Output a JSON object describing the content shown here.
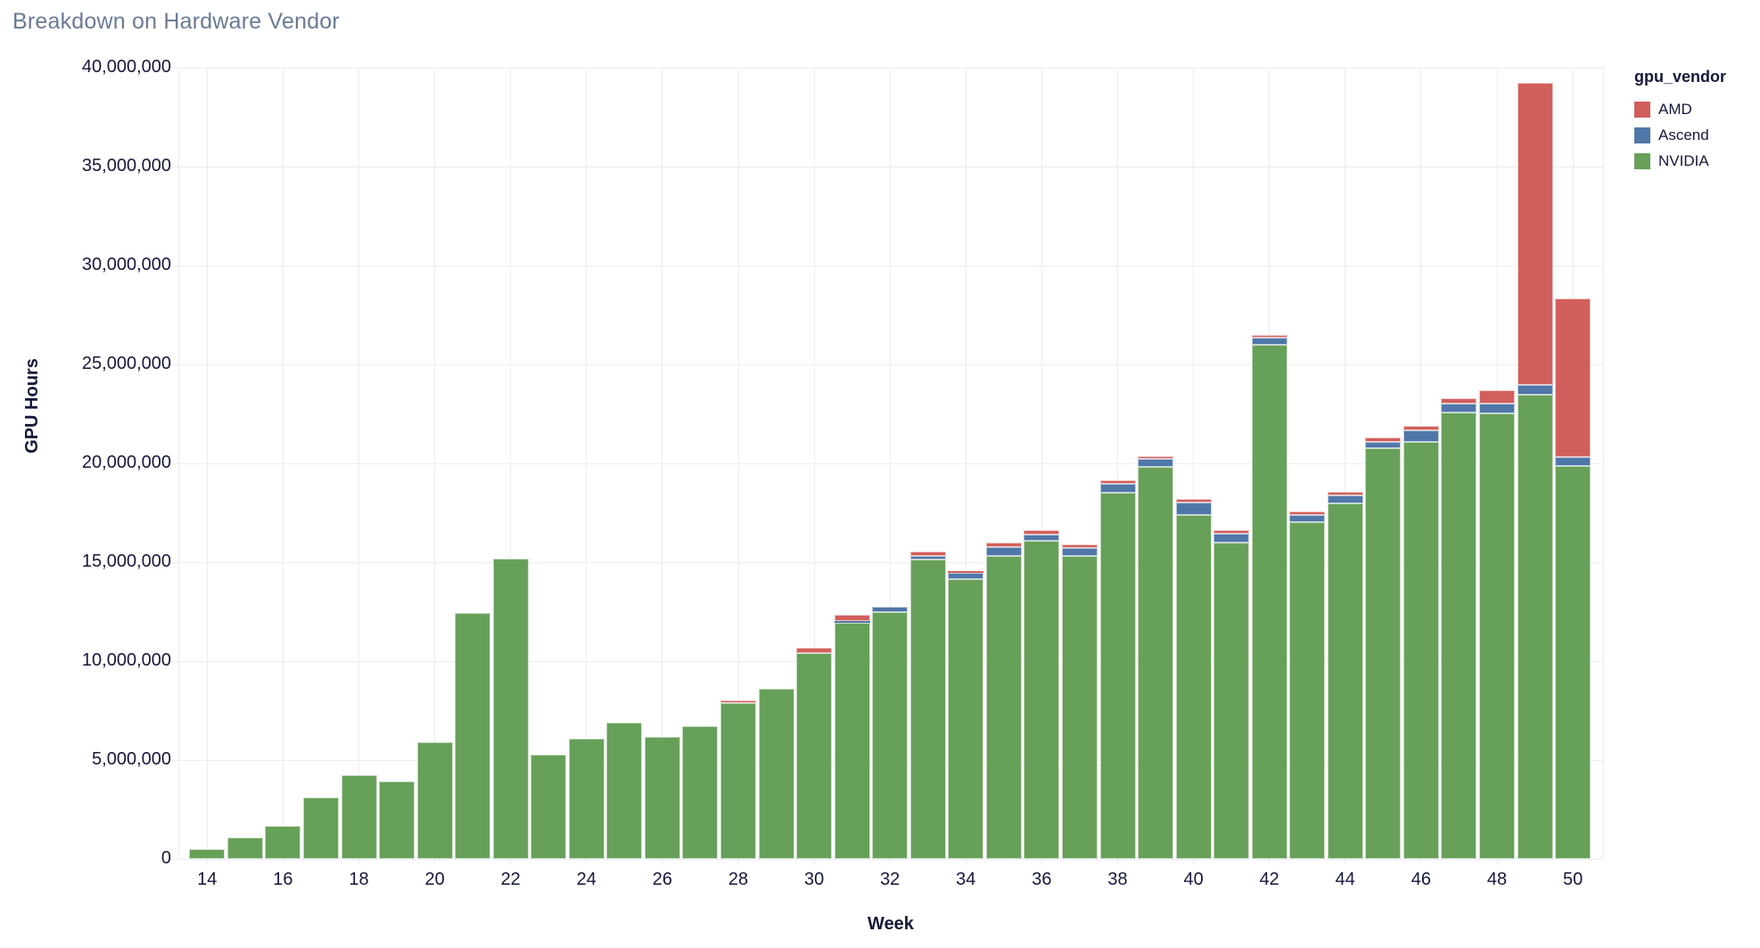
{
  "chart_data": {
    "type": "bar",
    "stacked": true,
    "title": "Breakdown on Hardware Vendor",
    "xlabel": "Week",
    "ylabel": "GPU Hours",
    "legend_title": "gpu_vendor",
    "legend_position": "right",
    "grid": true,
    "ylim": [
      0,
      40000000
    ],
    "ytick_values": [
      0,
      5000000,
      10000000,
      15000000,
      20000000,
      25000000,
      30000000,
      35000000,
      40000000
    ],
    "ytick_labels": [
      "0",
      "5,000,000",
      "10,000,000",
      "15,000,000",
      "20,000,000",
      "25,000,000",
      "30,000,000",
      "35,000,000",
      "40,000,000"
    ],
    "xtick_values": [
      14,
      16,
      18,
      20,
      22,
      24,
      26,
      28,
      30,
      32,
      34,
      36,
      38,
      40,
      42,
      44,
      46,
      48,
      50
    ],
    "xtick_labels": [
      "14",
      "16",
      "18",
      "20",
      "22",
      "24",
      "26",
      "28",
      "30",
      "32",
      "34",
      "36",
      "38",
      "40",
      "42",
      "44",
      "46",
      "48",
      "50"
    ],
    "x": [
      14,
      15,
      16,
      17,
      18,
      19,
      20,
      21,
      22,
      23,
      24,
      25,
      26,
      27,
      28,
      29,
      30,
      31,
      32,
      33,
      34,
      35,
      36,
      37,
      38,
      39,
      40,
      41,
      42,
      43,
      44,
      45,
      46,
      47,
      48,
      49,
      50
    ],
    "stack_order": [
      "NVIDIA",
      "Ascend",
      "AMD"
    ],
    "series": [
      {
        "name": "AMD",
        "color": "#d15f5c",
        "values": [
          0,
          0,
          0,
          0,
          0,
          0,
          0,
          0,
          0,
          0,
          0,
          0,
          0,
          0,
          150000,
          0,
          270000,
          300000,
          0,
          240000,
          100000,
          240000,
          230000,
          180000,
          150000,
          150000,
          180000,
          180000,
          160000,
          180000,
          190000,
          230000,
          250000,
          270000,
          680000,
          15240000,
          8050000
        ]
      },
      {
        "name": "Ascend",
        "color": "#4f77a8",
        "values": [
          0,
          0,
          0,
          0,
          0,
          0,
          0,
          0,
          0,
          0,
          0,
          0,
          0,
          0,
          0,
          0,
          0,
          120000,
          270000,
          180000,
          300000,
          450000,
          330000,
          420000,
          480000,
          410000,
          640000,
          470000,
          360000,
          350000,
          410000,
          330000,
          550000,
          450000,
          520000,
          530000,
          450000
        ]
      },
      {
        "name": "NVIDIA",
        "color": "#67a059",
        "values": [
          480000,
          1080000,
          1650000,
          3110000,
          4230000,
          3920000,
          5910000,
          12450000,
          15170000,
          5260000,
          6070000,
          6910000,
          6180000,
          6700000,
          7880000,
          8590000,
          10390000,
          11920000,
          12490000,
          15120000,
          14140000,
          15300000,
          16070000,
          15300000,
          18500000,
          19820000,
          17370000,
          15980000,
          25980000,
          17030000,
          17970000,
          20750000,
          21100000,
          22580000,
          22510000,
          23450000,
          19850000
        ]
      }
    ],
    "style": {
      "background": "#ffffff",
      "grid_color": "#ececf2",
      "text_color": "#16183a",
      "title_color": "#6b7a94",
      "bar_stroke": "rgba(255,255,255,0.65)"
    }
  }
}
